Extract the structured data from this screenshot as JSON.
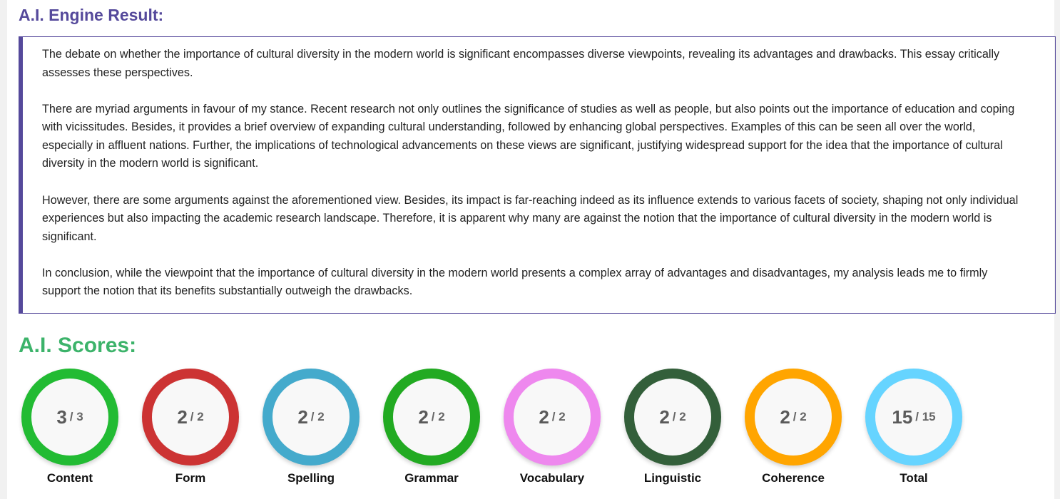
{
  "result": {
    "title": "A.I. Engine Result:",
    "paragraphs": [
      "The debate on whether the importance of cultural diversity in the modern world is significant encompasses diverse viewpoints, revealing its advantages and drawbacks. This essay critically assesses these perspectives.",
      "There are myriad arguments in favour of my stance. Recent research not only outlines the significance of studies as well as people, but also points out the importance of education and coping with vicissitudes. Besides, it provides a brief overview of expanding cultural understanding, followed by enhancing global perspectives. Examples of this can be seen all over the world, especially in affluent nations. Further, the implications of technological advancements on these views are significant, justifying widespread support for the idea that the importance of cultural diversity in the modern world is significant.",
      "However, there are some arguments against the aforementioned view. Besides, its impact is far-reaching indeed as its influence extends to various facets of society, shaping not only individual experiences but also impacting the academic research landscape. Therefore, it is apparent why many are against the notion that the importance of cultural diversity in the modern world is significant.",
      "In conclusion, while the viewpoint that the importance of cultural diversity in the modern world presents a complex array of advantages and disadvantages, my analysis leads me to firmly support the notion that its benefits substantially outweigh the drawbacks."
    ]
  },
  "scores": {
    "title": "A.I. Scores:",
    "items": [
      {
        "label": "Content",
        "value": "3",
        "max": "/ 3",
        "color": "#22bb33"
      },
      {
        "label": "Form",
        "value": "2",
        "max": "/ 2",
        "color": "#cc3333"
      },
      {
        "label": "Spelling",
        "value": "2",
        "max": "/ 2",
        "color": "#44aacc"
      },
      {
        "label": "Grammar",
        "value": "2",
        "max": "/ 2",
        "color": "#22aa22"
      },
      {
        "label": "Vocabulary",
        "value": "2",
        "max": "/ 2",
        "color": "#ee88ee"
      },
      {
        "label": "Linguistic",
        "value": "2",
        "max": "/ 2",
        "color": "#335f3a"
      },
      {
        "label": "Coherence",
        "value": "2",
        "max": "/ 2",
        "color": "#ffa500"
      },
      {
        "label": "Total",
        "value": "15",
        "max": "/ 15",
        "color": "#66d4ff"
      }
    ]
  }
}
